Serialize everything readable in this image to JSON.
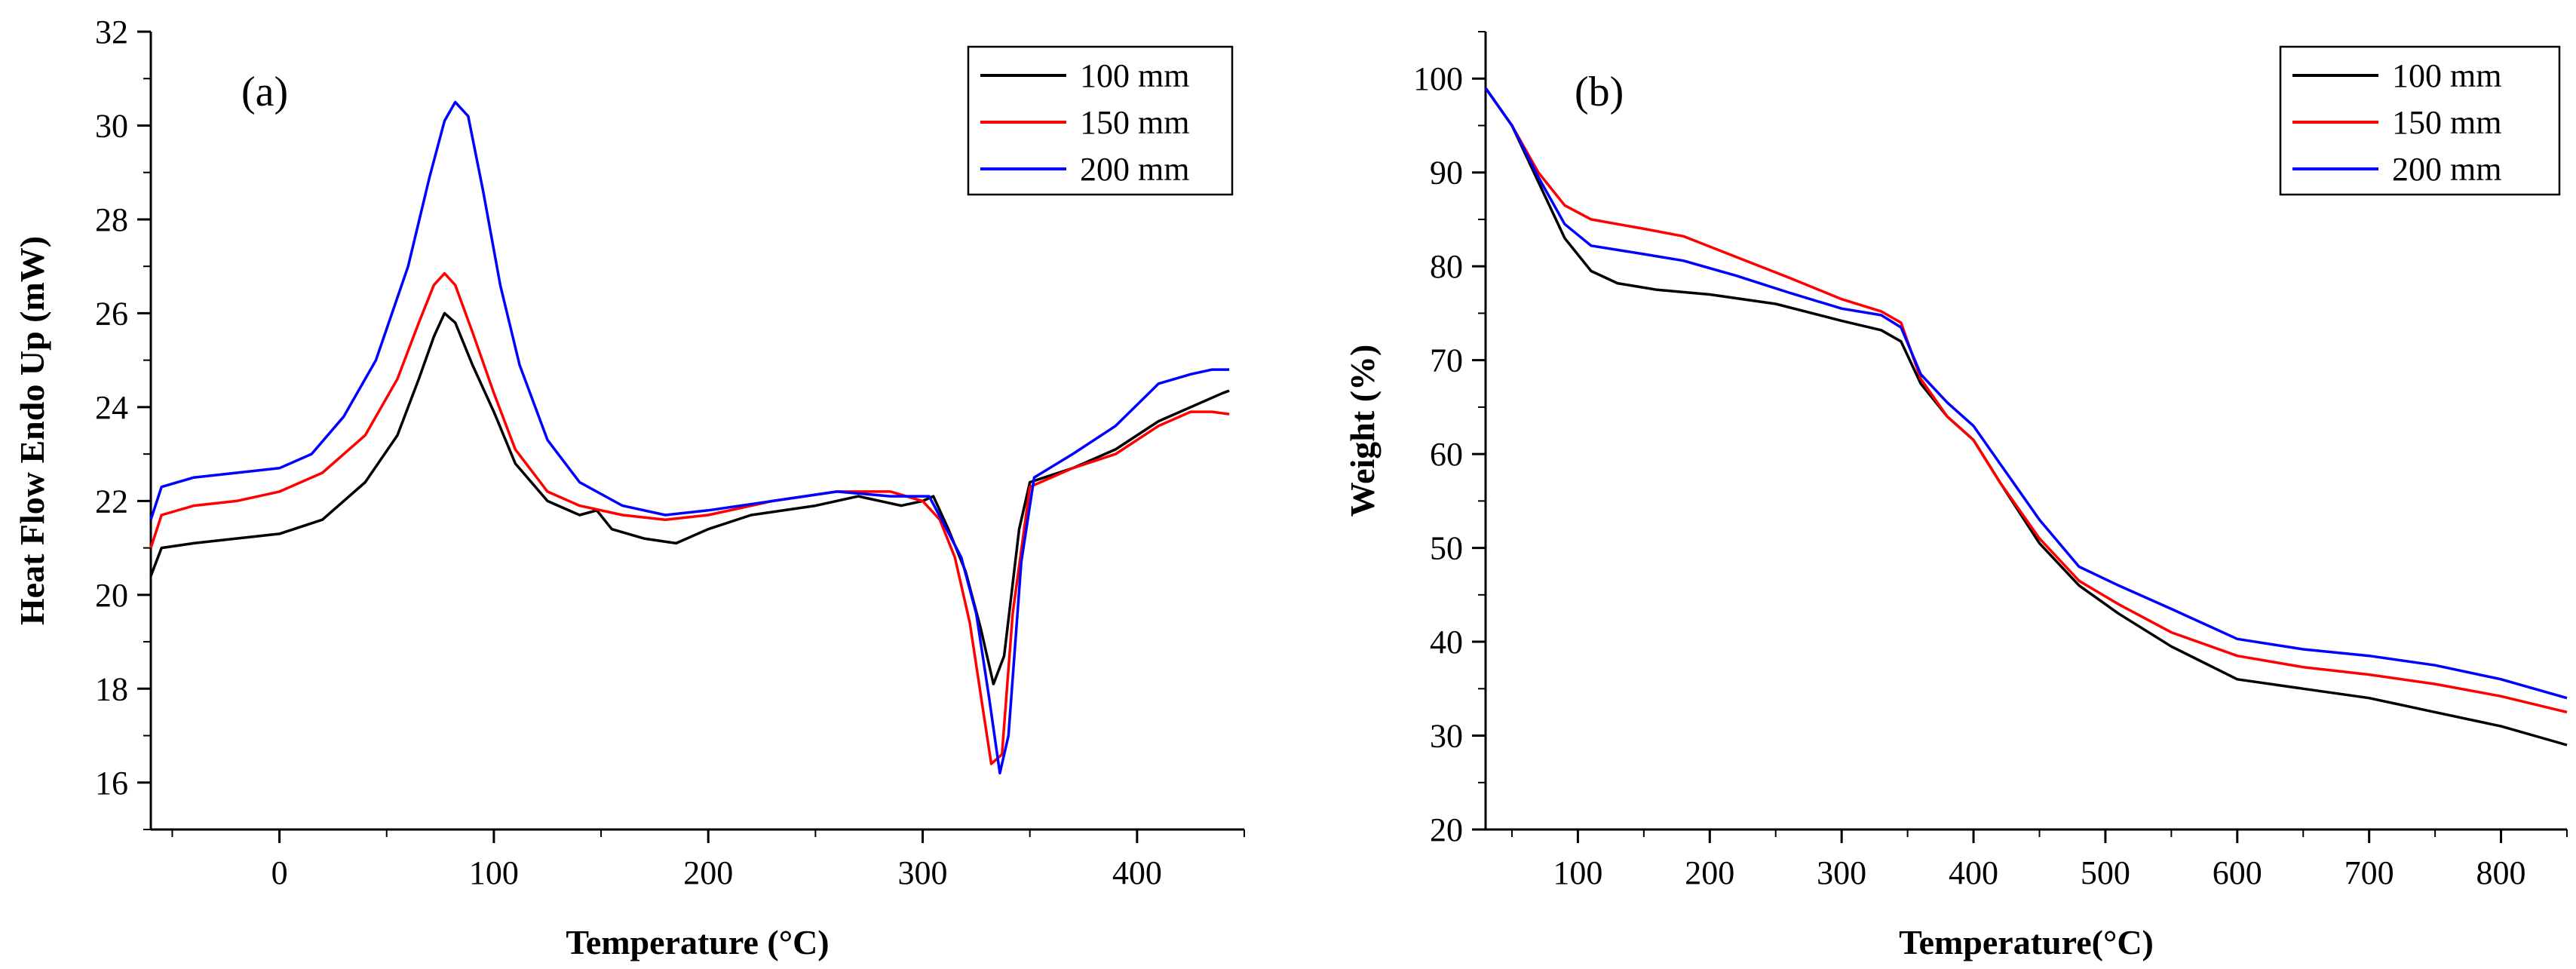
{
  "chart_data": [
    {
      "type": "line",
      "panel_label": "(a)",
      "xlabel": "Temperature (°C)",
      "ylabel": "Heat Flow Endo Up (mW)",
      "xlim": [
        -60,
        450
      ],
      "ylim": [
        15,
        32
      ],
      "xticks": [
        0,
        100,
        200,
        300,
        400
      ],
      "xtick_labels": [
        "0",
        "100",
        "200",
        "300",
        "400"
      ],
      "yticks": [
        16,
        18,
        20,
        22,
        24,
        26,
        28,
        30,
        32
      ],
      "ytick_labels": [
        "16",
        "18",
        "20",
        "22",
        "24",
        "26",
        "28",
        "30",
        "32"
      ],
      "legend_position": "top-right",
      "series": [
        {
          "name": "100 mm",
          "color": "#000000",
          "points": [
            [
              -60,
              20.4
            ],
            [
              -55,
              21.0
            ],
            [
              -40,
              21.1
            ],
            [
              -20,
              21.2
            ],
            [
              0,
              21.3
            ],
            [
              20,
              21.6
            ],
            [
              40,
              22.4
            ],
            [
              55,
              23.4
            ],
            [
              65,
              24.6
            ],
            [
              72,
              25.5
            ],
            [
              77,
              26.0
            ],
            [
              82,
              25.8
            ],
            [
              90,
              24.9
            ],
            [
              100,
              23.9
            ],
            [
              110,
              22.8
            ],
            [
              125,
              22.0
            ],
            [
              140,
              21.7
            ],
            [
              148,
              21.8
            ],
            [
              155,
              21.4
            ],
            [
              170,
              21.2
            ],
            [
              185,
              21.1
            ],
            [
              200,
              21.4
            ],
            [
              220,
              21.7
            ],
            [
              250,
              21.9
            ],
            [
              270,
              22.1
            ],
            [
              290,
              21.9
            ],
            [
              300,
              22.0
            ],
            [
              305,
              22.1
            ],
            [
              312,
              21.4
            ],
            [
              320,
              20.5
            ],
            [
              327,
              19.3
            ],
            [
              333,
              18.1
            ],
            [
              338,
              18.7
            ],
            [
              345,
              21.4
            ],
            [
              350,
              22.4
            ],
            [
              370,
              22.7
            ],
            [
              390,
              23.1
            ],
            [
              410,
              23.7
            ],
            [
              430,
              24.1
            ],
            [
              440,
              24.3
            ],
            [
              443,
              24.35
            ]
          ]
        },
        {
          "name": "150 mm",
          "color": "#ff0000",
          "points": [
            [
              -60,
              21.0
            ],
            [
              -55,
              21.7
            ],
            [
              -40,
              21.9
            ],
            [
              -20,
              22.0
            ],
            [
              0,
              22.2
            ],
            [
              20,
              22.6
            ],
            [
              40,
              23.4
            ],
            [
              55,
              24.6
            ],
            [
              65,
              25.8
            ],
            [
              72,
              26.6
            ],
            [
              77,
              26.85
            ],
            [
              82,
              26.6
            ],
            [
              90,
              25.6
            ],
            [
              100,
              24.3
            ],
            [
              110,
              23.1
            ],
            [
              125,
              22.2
            ],
            [
              140,
              21.9
            ],
            [
              160,
              21.7
            ],
            [
              180,
              21.6
            ],
            [
              200,
              21.7
            ],
            [
              230,
              22.0
            ],
            [
              260,
              22.2
            ],
            [
              285,
              22.2
            ],
            [
              300,
              22.0
            ],
            [
              308,
              21.6
            ],
            [
              315,
              20.8
            ],
            [
              322,
              19.4
            ],
            [
              328,
              17.6
            ],
            [
              332,
              16.4
            ],
            [
              337,
              16.6
            ],
            [
              342,
              19.6
            ],
            [
              350,
              22.3
            ],
            [
              370,
              22.7
            ],
            [
              390,
              23.0
            ],
            [
              410,
              23.6
            ],
            [
              425,
              23.9
            ],
            [
              435,
              23.9
            ],
            [
              443,
              23.85
            ]
          ]
        },
        {
          "name": "200 mm",
          "color": "#0000ff",
          "points": [
            [
              -60,
              21.6
            ],
            [
              -55,
              22.3
            ],
            [
              -40,
              22.5
            ],
            [
              -20,
              22.6
            ],
            [
              0,
              22.7
            ],
            [
              15,
              23.0
            ],
            [
              30,
              23.8
            ],
            [
              45,
              25.0
            ],
            [
              60,
              27.0
            ],
            [
              70,
              28.9
            ],
            [
              77,
              30.1
            ],
            [
              82,
              30.5
            ],
            [
              88,
              30.2
            ],
            [
              95,
              28.6
            ],
            [
              103,
              26.6
            ],
            [
              112,
              24.9
            ],
            [
              125,
              23.3
            ],
            [
              140,
              22.4
            ],
            [
              160,
              21.9
            ],
            [
              180,
              21.7
            ],
            [
              200,
              21.8
            ],
            [
              230,
              22.0
            ],
            [
              260,
              22.2
            ],
            [
              285,
              22.1
            ],
            [
              303,
              22.1
            ],
            [
              310,
              21.5
            ],
            [
              318,
              20.8
            ],
            [
              325,
              19.6
            ],
            [
              331,
              17.8
            ],
            [
              336,
              16.2
            ],
            [
              340,
              17.0
            ],
            [
              346,
              20.7
            ],
            [
              352,
              22.5
            ],
            [
              370,
              23.0
            ],
            [
              390,
              23.6
            ],
            [
              410,
              24.5
            ],
            [
              425,
              24.7
            ],
            [
              435,
              24.8
            ],
            [
              443,
              24.8
            ]
          ]
        }
      ]
    },
    {
      "type": "line",
      "panel_label": "(b)",
      "xlabel": "Temperature(°C)",
      "ylabel": "Weight (%)",
      "xlim": [
        30,
        850
      ],
      "ylim": [
        20,
        105
      ],
      "xticks": [
        100,
        200,
        300,
        400,
        500,
        600,
        700,
        800
      ],
      "xtick_labels": [
        "100",
        "200",
        "300",
        "400",
        "500",
        "600",
        "700",
        "800"
      ],
      "yticks": [
        20,
        30,
        40,
        50,
        60,
        70,
        80,
        90,
        100
      ],
      "ytick_labels": [
        "20",
        "30",
        "40",
        "50",
        "60",
        "70",
        "80",
        "90",
        "100"
      ],
      "legend_position": "top-right",
      "series": [
        {
          "name": "100 mm",
          "color": "#000000",
          "points": [
            [
              30,
              99.0
            ],
            [
              50,
              95.0
            ],
            [
              70,
              89.0
            ],
            [
              90,
              83.0
            ],
            [
              110,
              79.5
            ],
            [
              130,
              78.2
            ],
            [
              160,
              77.5
            ],
            [
              200,
              77.0
            ],
            [
              250,
              76.0
            ],
            [
              300,
              74.2
            ],
            [
              330,
              73.2
            ],
            [
              345,
              72.0
            ],
            [
              360,
              67.5
            ],
            [
              380,
              64.0
            ],
            [
              400,
              61.5
            ],
            [
              420,
              57.0
            ],
            [
              450,
              50.5
            ],
            [
              480,
              46.0
            ],
            [
              510,
              43.0
            ],
            [
              550,
              39.5
            ],
            [
              600,
              36.0
            ],
            [
              650,
              35.0
            ],
            [
              700,
              34.0
            ],
            [
              750,
              32.5
            ],
            [
              800,
              31.0
            ],
            [
              850,
              29.0
            ]
          ]
        },
        {
          "name": "150 mm",
          "color": "#ff0000",
          "points": [
            [
              30,
              99.0
            ],
            [
              50,
              95.0
            ],
            [
              70,
              90.0
            ],
            [
              90,
              86.5
            ],
            [
              110,
              85.0
            ],
            [
              150,
              84.0
            ],
            [
              180,
              83.2
            ],
            [
              220,
              81.0
            ],
            [
              260,
              78.8
            ],
            [
              300,
              76.5
            ],
            [
              330,
              75.2
            ],
            [
              345,
              74.0
            ],
            [
              360,
              68.0
            ],
            [
              380,
              64.0
            ],
            [
              400,
              61.5
            ],
            [
              420,
              57.0
            ],
            [
              450,
              51.0
            ],
            [
              480,
              46.5
            ],
            [
              510,
              44.0
            ],
            [
              550,
              41.0
            ],
            [
              600,
              38.5
            ],
            [
              650,
              37.3
            ],
            [
              700,
              36.5
            ],
            [
              750,
              35.5
            ],
            [
              800,
              34.2
            ],
            [
              850,
              32.5
            ]
          ]
        },
        {
          "name": "200 mm",
          "color": "#0000ff",
          "points": [
            [
              30,
              99.0
            ],
            [
              50,
              95.0
            ],
            [
              70,
              89.5
            ],
            [
              90,
              84.5
            ],
            [
              110,
              82.2
            ],
            [
              150,
              81.3
            ],
            [
              180,
              80.6
            ],
            [
              220,
              79.0
            ],
            [
              260,
              77.2
            ],
            [
              300,
              75.5
            ],
            [
              330,
              74.8
            ],
            [
              345,
              73.5
            ],
            [
              360,
              68.5
            ],
            [
              380,
              65.5
            ],
            [
              400,
              63.0
            ],
            [
              420,
              59.0
            ],
            [
              450,
              53.0
            ],
            [
              480,
              48.0
            ],
            [
              510,
              46.0
            ],
            [
              550,
              43.5
            ],
            [
              600,
              40.3
            ],
            [
              650,
              39.2
            ],
            [
              700,
              38.5
            ],
            [
              750,
              37.5
            ],
            [
              800,
              36.0
            ],
            [
              850,
              34.0
            ]
          ]
        }
      ]
    }
  ]
}
